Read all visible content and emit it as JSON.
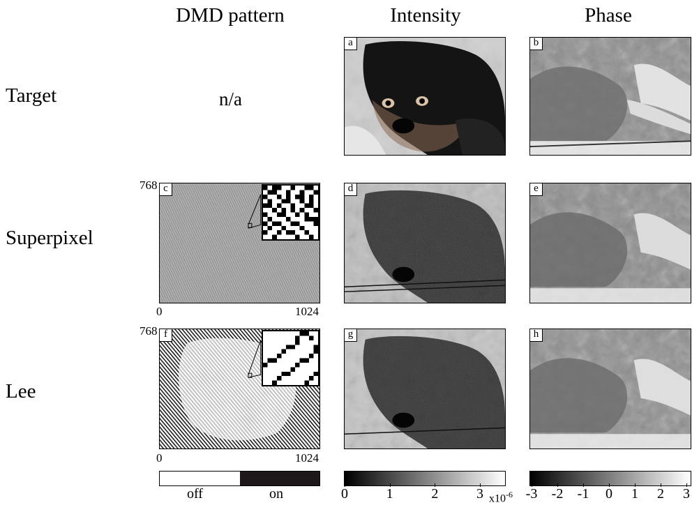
{
  "columns": {
    "dmd": "DMD pattern",
    "intensity": "Intensity",
    "phase": "Phase"
  },
  "rows": {
    "target": "Target",
    "superpixel": "Superpixel",
    "lee": "Lee"
  },
  "na_text": "n/a",
  "panels": {
    "a": "a",
    "b": "b",
    "c": "c",
    "d": "d",
    "e": "e",
    "f": "f",
    "g": "g",
    "h": "h"
  },
  "dmd_axes": {
    "y_max": "768",
    "x_min": "0",
    "x_max": "1024"
  },
  "colorbars": {
    "dmd": {
      "off": "off",
      "on": "on"
    },
    "intensity": {
      "ticks": [
        "0",
        "1",
        "2",
        "3"
      ],
      "multiplier": "x10",
      "exponent": "-6"
    },
    "phase": {
      "ticks": [
        "-3",
        "-2",
        "-1",
        "0",
        "1",
        "2",
        "3"
      ]
    }
  },
  "colors": {
    "on": "#1e181a",
    "off": "#ffffff"
  }
}
